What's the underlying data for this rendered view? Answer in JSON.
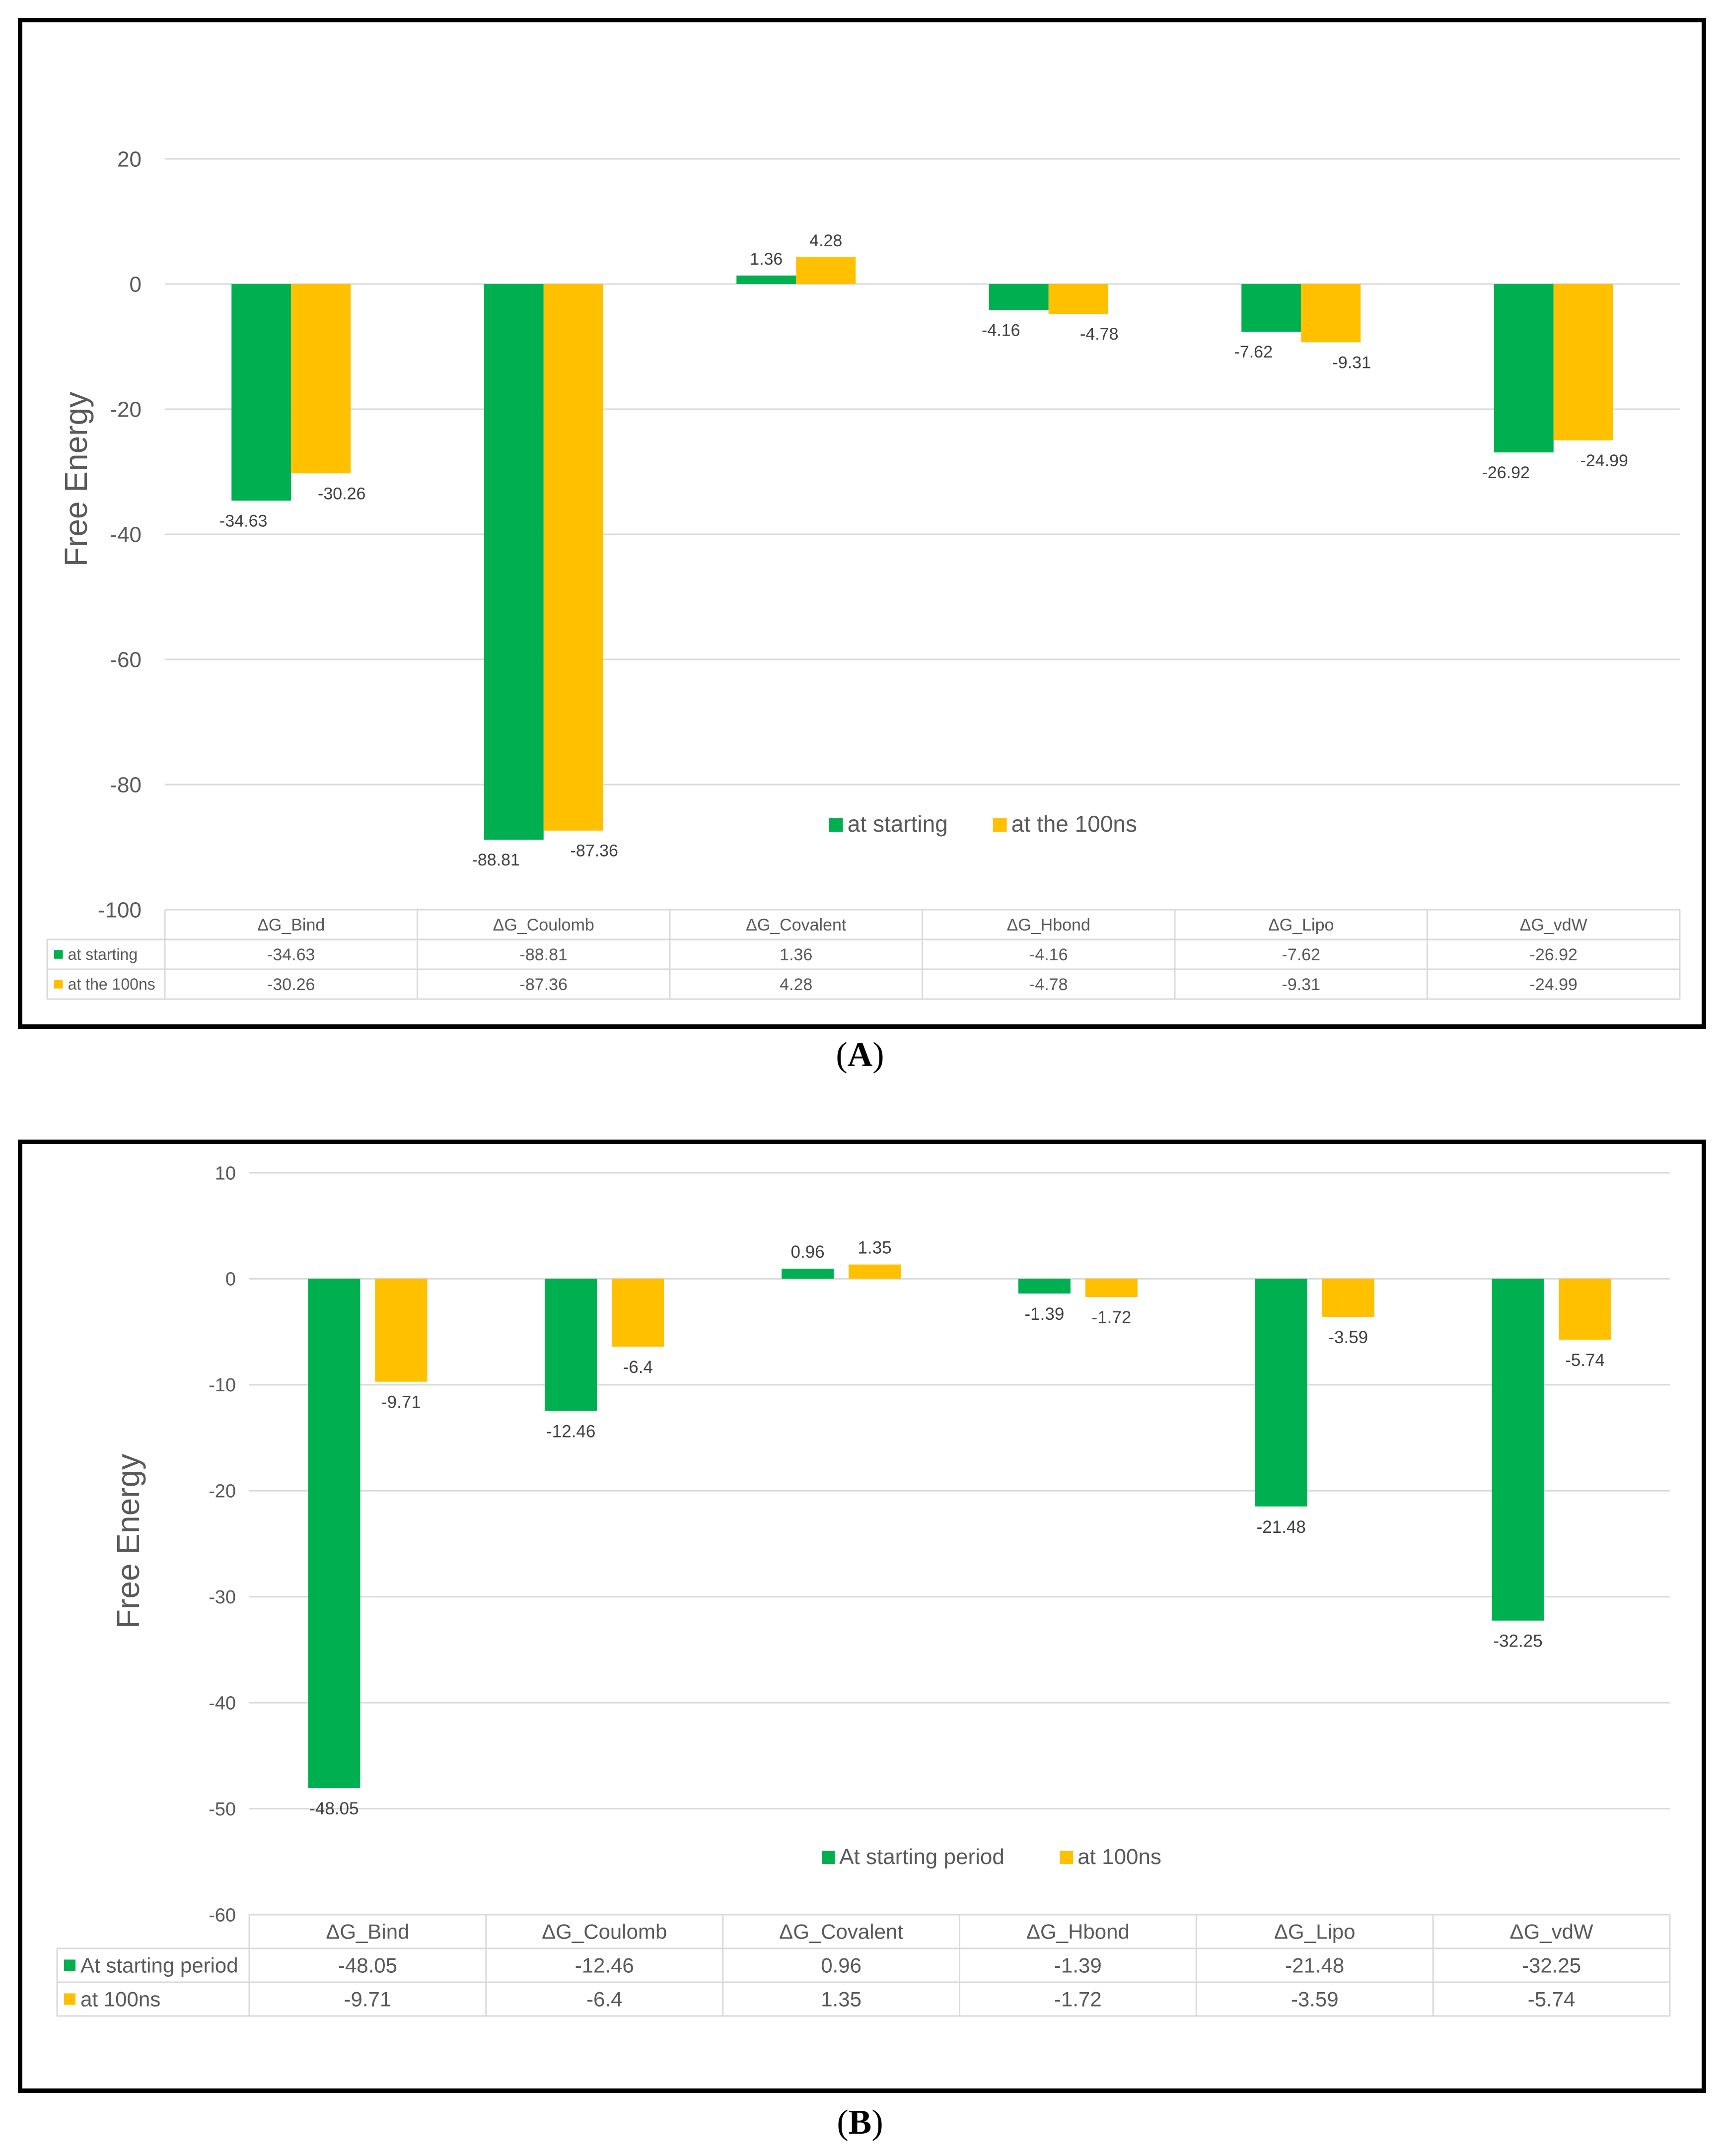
{
  "colors": {
    "green": "#00b050",
    "yellow": "#ffc000",
    "grid": "#d9d9d9",
    "text": "#595959"
  },
  "captions": {
    "a": "A",
    "b": "B"
  },
  "chart_data": [
    {
      "type": "bar",
      "panel": "A",
      "ylabel": "Free Energy",
      "ylim": [
        -100,
        20
      ],
      "yticks": [
        20,
        0,
        -20,
        -40,
        -60,
        -80,
        -100
      ],
      "grid": true,
      "legend_position": "bottom-center",
      "categories": [
        "ΔG_Bind",
        "ΔG_Coulomb",
        "ΔG_Covalent",
        "ΔG_Hbond",
        "ΔG_Lipo",
        "ΔG_vdW"
      ],
      "series": [
        {
          "name": "at starting",
          "color": "#00b050",
          "values": [
            -34.63,
            -88.81,
            1.36,
            -4.16,
            -7.62,
            -26.92
          ]
        },
        {
          "name": "at the 100ns",
          "color": "#ffc000",
          "values": [
            -30.26,
            -87.36,
            4.28,
            -4.78,
            -9.31,
            -24.99
          ]
        }
      ]
    },
    {
      "type": "bar",
      "panel": "B",
      "ylabel": "Free Energy",
      "ylim": [
        -60,
        10
      ],
      "yticks": [
        10,
        0,
        -10,
        -20,
        -30,
        -40,
        -50,
        -60
      ],
      "grid": true,
      "legend_position": "bottom-center",
      "categories": [
        "ΔG_Bind",
        "ΔG_Coulomb",
        "ΔG_Covalent",
        "ΔG_Hbond",
        "ΔG_Lipo",
        "ΔG_vdW"
      ],
      "series": [
        {
          "name": "At starting period",
          "color": "#00b050",
          "values": [
            -48.05,
            -12.46,
            0.96,
            -1.39,
            -21.48,
            -32.25
          ]
        },
        {
          "name": "at 100ns",
          "color": "#ffc000",
          "values": [
            -9.71,
            -6.4,
            1.35,
            -1.72,
            -3.59,
            -5.74
          ]
        }
      ]
    }
  ]
}
